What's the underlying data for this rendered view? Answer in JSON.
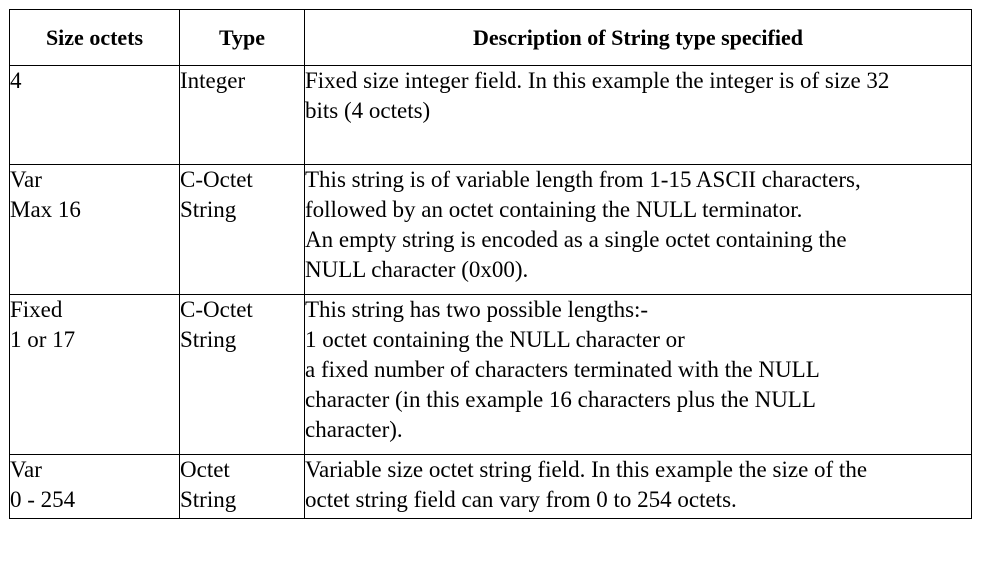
{
  "table": {
    "headers": {
      "size": "Size octets",
      "type": "Type",
      "description": "Description of String type specified"
    },
    "rows": [
      {
        "size": [
          "4"
        ],
        "type": [
          "Integer"
        ],
        "description": [
          "Fixed size integer field. In this example the integer is of size 32",
          "bits (4 octets)"
        ]
      },
      {
        "size": [
          "Var",
          "Max 16"
        ],
        "type": [
          "C-Octet",
          "String"
        ],
        "description": [
          "This string is of variable length from 1-15 ASCII characters,",
          "followed by an octet containing the NULL terminator.",
          "An empty string is encoded as a single octet containing the",
          "NULL character (0x00)."
        ]
      },
      {
        "size": [
          "Fixed",
          "1 or 17"
        ],
        "type": [
          "C-Octet",
          "String"
        ],
        "description": [
          "This string has two possible lengths:-",
          "1 octet containing the NULL character or",
          "a fixed number of characters terminated with the NULL",
          "character (in this example 16 characters plus the NULL",
          "character)."
        ]
      },
      {
        "size": [
          "Var",
          "0 - 254"
        ],
        "type": [
          "Octet",
          "String"
        ],
        "description": [
          "Variable size octet string field. In this example the size of the",
          "octet string field can vary from 0 to 254 octets."
        ]
      }
    ]
  }
}
